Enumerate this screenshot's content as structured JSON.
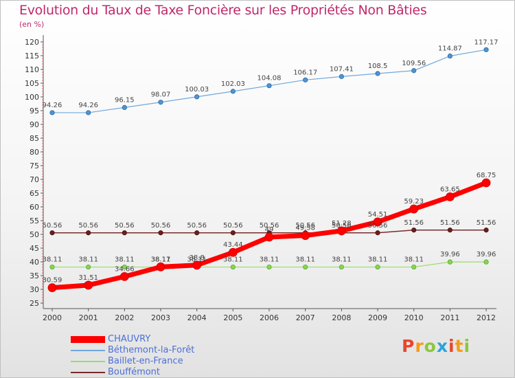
{
  "title": "Evolution du Taux de Taxe Foncière sur les Propriétés Non Bâties",
  "subtitle": "(en %)",
  "logo": {
    "text": "Proxiti",
    "colors": [
      "#e8472c",
      "#f59c1a",
      "#8cc63f",
      "#29a3dd",
      "#e8472c",
      "#f59c1a",
      "#8cc63f"
    ]
  },
  "chart_data": {
    "type": "line",
    "title": "Evolution du Taux de Taxe Foncière sur les Propriétés Non Bâties",
    "ylabel": "(en %)",
    "x": [
      "2000",
      "2001",
      "2002",
      "2003",
      "2004",
      "2005",
      "2006",
      "2007",
      "2008",
      "2009",
      "2010",
      "2011",
      "2012"
    ],
    "ylim": [
      25,
      120
    ],
    "yticks": [
      25,
      30,
      35,
      40,
      45,
      50,
      55,
      60,
      65,
      70,
      75,
      80,
      85,
      90,
      95,
      100,
      105,
      110,
      115,
      120
    ],
    "grid": false,
    "legend": "bottom-left",
    "series": [
      {
        "name": "CHAUVRY",
        "color": "#ff0000",
        "values": [
          30.59,
          31.51,
          34.66,
          38.17,
          38.8,
          43.44,
          49,
          49.58,
          51.28,
          54.51,
          59.23,
          63.65,
          68.75
        ],
        "labels": [
          "30.59",
          "31.51",
          "34.66",
          "38.17",
          "38.8",
          "43.44",
          "49",
          "49.58",
          "51.28",
          "54.51",
          "59.23",
          "63.65",
          "68.75"
        ]
      },
      {
        "name": "Béthemont-la-Forêt",
        "color": "#6fa8dc",
        "values": [
          94.26,
          94.26,
          96.15,
          98.07,
          100.03,
          102.03,
          104.08,
          106.17,
          107.41,
          108.5,
          109.56,
          114.87,
          117.17
        ],
        "labels": [
          "94.26",
          "94.26",
          "96.15",
          "98.07",
          "100.03",
          "102.03",
          "104.08",
          "106.17",
          "107.41",
          "108.5",
          "109.56",
          "114.87",
          "117.17"
        ]
      },
      {
        "name": "Baillet-en-France",
        "color": "#99dd66",
        "values": [
          38.11,
          38.11,
          38.11,
          38.11,
          38.11,
          38.11,
          38.11,
          38.11,
          38.11,
          38.11,
          38.11,
          39.96,
          39.96
        ],
        "labels": [
          "38.11",
          "38.11",
          "38.11",
          "38.11",
          "38.11",
          "38.11",
          "38.11",
          "38.11",
          "38.11",
          "38.11",
          "38.11",
          "39.96",
          "39.96"
        ]
      },
      {
        "name": "Bouffémont",
        "color": "#7a2a2a",
        "values": [
          50.56,
          50.56,
          50.56,
          50.56,
          50.56,
          50.56,
          50.56,
          50.56,
          50.56,
          50.56,
          51.56,
          51.56,
          51.56
        ],
        "labels": [
          "50.56",
          "50.56",
          "50.56",
          "50.56",
          "50.56",
          "50.56",
          "50.56",
          "50.56",
          "50.56",
          "50.56",
          "51.56",
          "51.56",
          "51.56"
        ]
      }
    ]
  }
}
